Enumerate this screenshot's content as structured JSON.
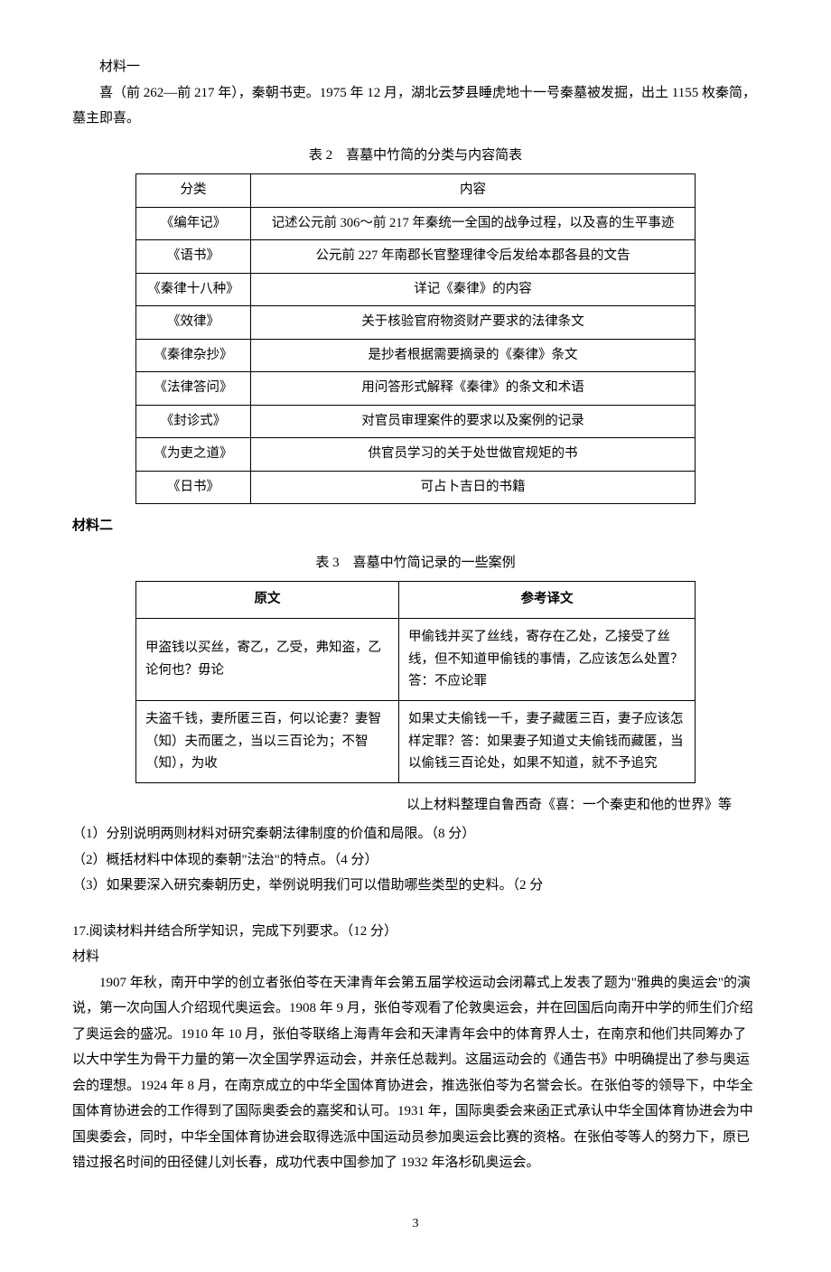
{
  "material1_label": "材料一",
  "material1_p": "喜（前 262—前 217 年），秦朝书吏。1975 年 12 月，湖北云梦县睡虎地十一号秦墓被发掘，出土 1155 枚秦简，墓主即喜。",
  "table2_caption": "表 2　喜墓中竹简的分类与内容简表",
  "table2_headers": [
    "分类",
    "内容"
  ],
  "table2_rows": [
    [
      "《编年记》",
      "记述公元前 306～前 217 年秦统一全国的战争过程，以及喜的生平事迹"
    ],
    [
      "《语书》",
      "公元前 227 年南郡长官整理律令后发给本郡各县的文告"
    ],
    [
      "《秦律十八种》",
      "详记《秦律》的内容"
    ],
    [
      "《效律》",
      "关于核验官府物资财产要求的法律条文"
    ],
    [
      "《秦律杂抄》",
      "是抄者根据需要摘录的《秦律》条文"
    ],
    [
      "《法律答问》",
      "用问答形式解释《秦律》的条文和术语"
    ],
    [
      "《封诊式》",
      "对官员审理案件的要求以及案例的记录"
    ],
    [
      "《为吏之道》",
      "供官员学习的关于处世做官规矩的书"
    ],
    [
      "《日书》",
      "可占卜吉日的书籍"
    ]
  ],
  "material2_label": "材料二",
  "table3_caption": "表 3　喜墓中竹简记录的一些案例",
  "table3_headers": [
    "原文",
    "参考译文"
  ],
  "table3_rows": [
    [
      "甲盗钱以买丝，寄乙，乙受，弗知盗，乙论何也？毋论",
      "甲偷钱并买了丝线，寄存在乙处，乙接受了丝线，但不知道甲偷钱的事情，乙应该怎么处置？答：不应论罪"
    ],
    [
      "夫盗千钱，妻所匿三百，何以论妻？妻智（知）夫而匿之，当以三百论为；不智（知），为收",
      "如果丈夫偷钱一千，妻子藏匿三百，妻子应该怎样定罪？答：如果妻子知道丈夫偷钱而藏匿，当以偷钱三百论处，如果不知道，就不予追究"
    ]
  ],
  "source_line": "以上材料整理自鲁西奇《喜：一个秦吏和他的世界》等",
  "q1": "（1）分别说明两则材料对研究秦朝法律制度的价值和局限。（8 分）",
  "q2": "（2）概括材料中体现的秦朝\"法治\"的特点。（4 分）",
  "q3": "（3）如果要深入研究秦朝历史，举例说明我们可以借助哪些类型的史料。（2 分",
  "q17_title": "17.阅读材料并结合所学知识，完成下列要求。（12 分）",
  "q17_material_label": "材料",
  "q17_body": "1907 年秋，南开中学的创立者张伯苓在天津青年会第五届学校运动会闭幕式上发表了题为\"雅典的奥运会\"的演说，第一次向国人介绍现代奥运会。1908 年 9 月，张伯苓观看了伦敦奥运会，并在回国后向南开中学的师生们介绍了奥运会的盛况。1910 年 10 月，张伯苓联络上海青年会和天津青年会中的体育界人士，在南京和他们共同筹办了以大中学生为骨干力量的第一次全国学界运动会，并亲任总裁判。这届运动会的《通告书》中明确提出了参与奥运会的理想。1924 年 8 月，在南京成立的中华全国体育协进会，推选张伯苓为名誉会长。在张伯苓的领导下，中华全国体育协进会的工作得到了国际奥委会的嘉奖和认可。1931 年，国际奥委会来函正式承认中华全国体育协进会为中国奥委会，同时，中华全国体育协进会取得选派中国运动员参加奥运会比赛的资格。在张伯苓等人的努力下，原已错过报名时间的田径健儿刘长春，成功代表中国参加了 1932 年洛杉矶奥运会。",
  "page_num": "3"
}
